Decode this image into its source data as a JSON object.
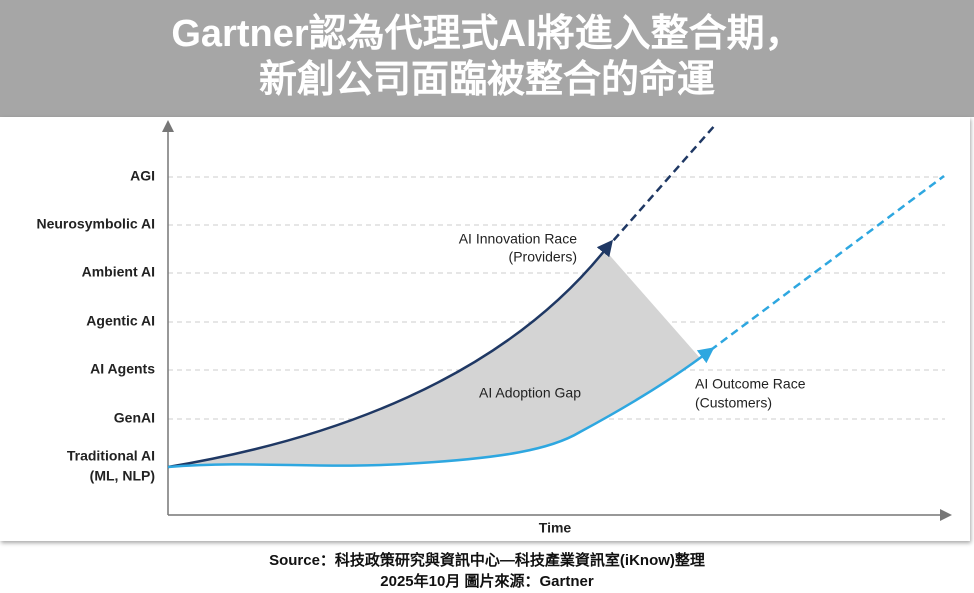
{
  "header": {
    "title": [
      "Gartner認為代理式AI將進入整合期，",
      "新創公司面臨被整合的命運"
    ]
  },
  "y_axis": {
    "levels": [
      {
        "label": "AGI"
      },
      {
        "label": "Neurosymbolic AI"
      },
      {
        "label": "Ambient AI"
      },
      {
        "label": "Agentic AI"
      },
      {
        "label": "AI Agents"
      },
      {
        "label": "GenAI"
      },
      {
        "label": "Traditional AI",
        "sublabel": "(ML, NLP)"
      }
    ]
  },
  "x_axis": {
    "label": "Time"
  },
  "annotations": {
    "innovation_race": {
      "title": "AI Innovation Race",
      "subtitle": "(Providers)"
    },
    "adoption_gap": {
      "title": "AI Adoption Gap"
    },
    "outcome_race": {
      "title": "AI Outcome Race",
      "subtitle": "(Customers)"
    }
  },
  "footer": {
    "lines": [
      "Source：科技政策研究與資訊中心—科技產業資訊室(iKnow)整理",
      "2025年10月  圖片來源：Gartner"
    ]
  }
}
